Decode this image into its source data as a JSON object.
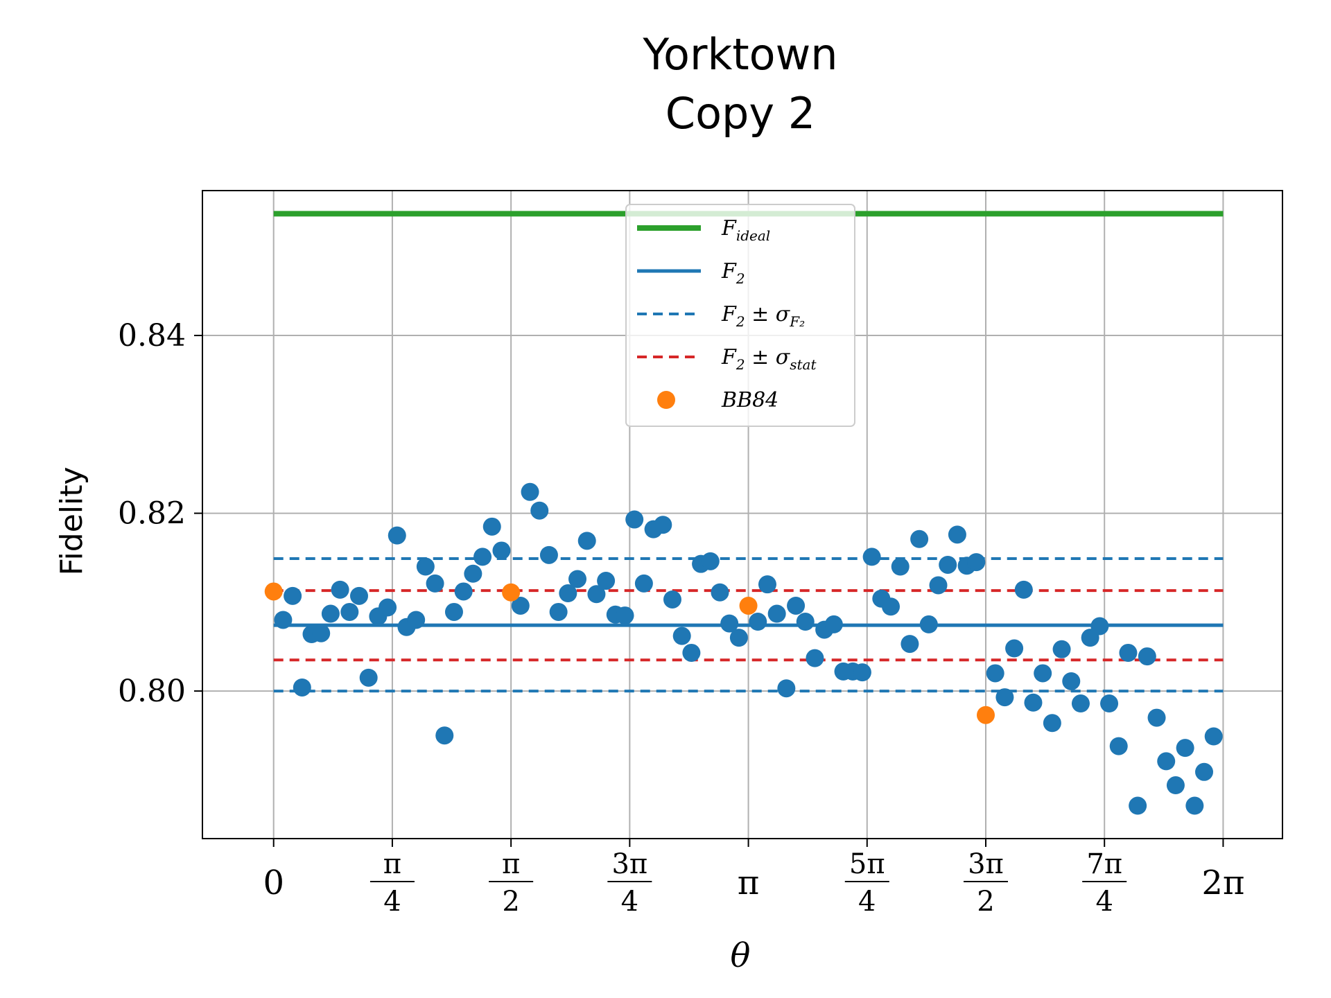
{
  "chart_data": {
    "type": "scatter",
    "title": "Yorktown\nCopy 2",
    "title_lines": [
      "Yorktown",
      "Copy 2"
    ],
    "xlabel": "θ",
    "ylabel": "Fidelity",
    "xlim": [
      -0.4712,
      6.6758
    ],
    "ylim": [
      0.7834,
      0.8563
    ],
    "grid": true,
    "legend_position": "upper-center",
    "y_ticks": [
      {
        "value": 0.8,
        "label": "0.80"
      },
      {
        "value": 0.82,
        "label": "0.82"
      },
      {
        "value": 0.84,
        "label": "0.84"
      }
    ],
    "x_ticks": [
      {
        "value": 0,
        "label": "0"
      },
      {
        "value": 0.7854,
        "num": "π",
        "den": "4"
      },
      {
        "value": 1.5708,
        "num": "π",
        "den": "2"
      },
      {
        "value": 2.3562,
        "num": "3π",
        "den": "4"
      },
      {
        "value": 3.1416,
        "label": "π"
      },
      {
        "value": 3.927,
        "num": "5π",
        "den": "4"
      },
      {
        "value": 4.7124,
        "num": "3π",
        "den": "2"
      },
      {
        "value": 5.4978,
        "num": "7π",
        "den": "4"
      },
      {
        "value": 6.2832,
        "label": "2π"
      }
    ],
    "lines": [
      {
        "name": "F_ideal",
        "label_main": "F",
        "label_sub": "ideal",
        "color": "#2ca02c",
        "dash": "solid",
        "width": 8,
        "y": 0.8537,
        "x_start": 0,
        "x_end": 6.2832
      },
      {
        "name": "F_2",
        "label_main": "F",
        "label_sub": "2",
        "color": "#1f77b4",
        "dash": "solid",
        "width": 5,
        "y": 0.8074,
        "x_start": 0,
        "x_end": 6.2832
      },
      {
        "name": "F_2 ± σ_F2 (upper)",
        "label_main": "F",
        "label_sub": "2",
        "label_rest": " ± σ",
        "label_sub2": "F₂",
        "color": "#1f77b4",
        "dash": "dashed",
        "width": 4,
        "y": 0.8149,
        "x_start": 0,
        "x_end": 6.2832,
        "in_legend": true
      },
      {
        "name": "F_2 ± σ_F2 (lower)",
        "color": "#1f77b4",
        "dash": "dashed",
        "width": 4,
        "y": 0.8,
        "x_start": 0,
        "x_end": 6.2832,
        "in_legend": false
      },
      {
        "name": "F_2 ± σ_stat (upper)",
        "label_main": "F",
        "label_sub": "2",
        "label_rest": " ± σ",
        "label_sub2": "stat",
        "color": "#d62728",
        "dash": "dashed",
        "width": 4,
        "y": 0.8113,
        "x_start": 0,
        "x_end": 6.2832,
        "in_legend": true
      },
      {
        "name": "F_2 ± σ_stat (lower)",
        "color": "#d62728",
        "dash": "dashed",
        "width": 4,
        "y": 0.8035,
        "x_start": 0,
        "x_end": 6.2832,
        "in_legend": false
      }
    ],
    "series": [
      {
        "name": "blue points",
        "color": "#1f77b4",
        "points": [
          [
            0.0628,
            0.808
          ],
          [
            0.1257,
            0.8107
          ],
          [
            0.1885,
            0.8004
          ],
          [
            0.2513,
            0.8064
          ],
          [
            0.3142,
            0.8065
          ],
          [
            0.377,
            0.8087
          ],
          [
            0.4398,
            0.8114
          ],
          [
            0.5027,
            0.8089
          ],
          [
            0.5655,
            0.8107
          ],
          [
            0.6283,
            0.8015
          ],
          [
            0.6912,
            0.8084
          ],
          [
            0.754,
            0.8094
          ],
          [
            0.8168,
            0.8175
          ],
          [
            0.8796,
            0.8072
          ],
          [
            0.9425,
            0.808
          ],
          [
            1.0053,
            0.814
          ],
          [
            1.0681,
            0.8121
          ],
          [
            1.131,
            0.795
          ],
          [
            1.1938,
            0.8089
          ],
          [
            1.2566,
            0.8112
          ],
          [
            1.3195,
            0.8132
          ],
          [
            1.3823,
            0.8151
          ],
          [
            1.4451,
            0.8185
          ],
          [
            1.508,
            0.8158
          ],
          [
            1.6336,
            0.8096
          ],
          [
            1.6965,
            0.8224
          ],
          [
            1.7593,
            0.8203
          ],
          [
            1.8221,
            0.8153
          ],
          [
            1.885,
            0.8089
          ],
          [
            1.9478,
            0.811
          ],
          [
            2.0106,
            0.8126
          ],
          [
            2.0735,
            0.8169
          ],
          [
            2.1363,
            0.8109
          ],
          [
            2.1991,
            0.8124
          ],
          [
            2.2619,
            0.8086
          ],
          [
            2.3248,
            0.8085
          ],
          [
            2.3876,
            0.8193
          ],
          [
            2.4504,
            0.8121
          ],
          [
            2.5133,
            0.8182
          ],
          [
            2.5761,
            0.8187
          ],
          [
            2.6389,
            0.8103
          ],
          [
            2.7018,
            0.8062
          ],
          [
            2.7646,
            0.8043
          ],
          [
            2.8274,
            0.8143
          ],
          [
            2.8903,
            0.8146
          ],
          [
            2.9531,
            0.8111
          ],
          [
            3.0159,
            0.8076
          ],
          [
            3.0788,
            0.806
          ],
          [
            3.2044,
            0.8078
          ],
          [
            3.2673,
            0.812
          ],
          [
            3.3301,
            0.8087
          ],
          [
            3.3929,
            0.8003
          ],
          [
            3.4558,
            0.8096
          ],
          [
            3.5186,
            0.8078
          ],
          [
            3.5814,
            0.8037
          ],
          [
            3.6442,
            0.8069
          ],
          [
            3.7071,
            0.8075
          ],
          [
            3.7699,
            0.8022
          ],
          [
            3.8327,
            0.8022
          ],
          [
            3.8956,
            0.8021
          ],
          [
            3.9584,
            0.8151
          ],
          [
            4.0212,
            0.8104
          ],
          [
            4.0841,
            0.8095
          ],
          [
            4.1469,
            0.814
          ],
          [
            4.2097,
            0.8053
          ],
          [
            4.2726,
            0.8171
          ],
          [
            4.3354,
            0.8075
          ],
          [
            4.3982,
            0.8119
          ],
          [
            4.4611,
            0.8142
          ],
          [
            4.5239,
            0.8176
          ],
          [
            4.5867,
            0.8141
          ],
          [
            4.6496,
            0.8145
          ],
          [
            4.7752,
            0.802
          ],
          [
            4.8381,
            0.7993
          ],
          [
            4.9009,
            0.8048
          ],
          [
            4.9637,
            0.8114
          ],
          [
            5.0265,
            0.7987
          ],
          [
            5.0894,
            0.802
          ],
          [
            5.1522,
            0.7964
          ],
          [
            5.215,
            0.8047
          ],
          [
            5.2779,
            0.8011
          ],
          [
            5.3407,
            0.7986
          ],
          [
            5.4035,
            0.806
          ],
          [
            5.4664,
            0.8073
          ],
          [
            5.5292,
            0.7986
          ],
          [
            5.592,
            0.7938
          ],
          [
            5.6549,
            0.8043
          ],
          [
            5.7177,
            0.7871
          ],
          [
            5.7805,
            0.8039
          ],
          [
            5.8434,
            0.797
          ],
          [
            5.9062,
            0.7921
          ],
          [
            5.969,
            0.7894
          ],
          [
            6.0319,
            0.7936
          ],
          [
            6.0947,
            0.7871
          ],
          [
            6.1575,
            0.7909
          ],
          [
            6.2204,
            0.7949
          ]
        ]
      },
      {
        "name": "BB84",
        "label_text": "BB84",
        "color": "#ff7f0e",
        "points": [
          [
            0.0,
            0.8112
          ],
          [
            1.5708,
            0.8111
          ],
          [
            3.1416,
            0.8096
          ],
          [
            4.7124,
            0.7973
          ]
        ]
      }
    ],
    "legend": [
      {
        "key": "F_ideal"
      },
      {
        "key": "F_2"
      },
      {
        "key": "F_2 ± σ_F2"
      },
      {
        "key": "F_2 ± σ_stat"
      },
      {
        "key": "BB84"
      }
    ]
  }
}
